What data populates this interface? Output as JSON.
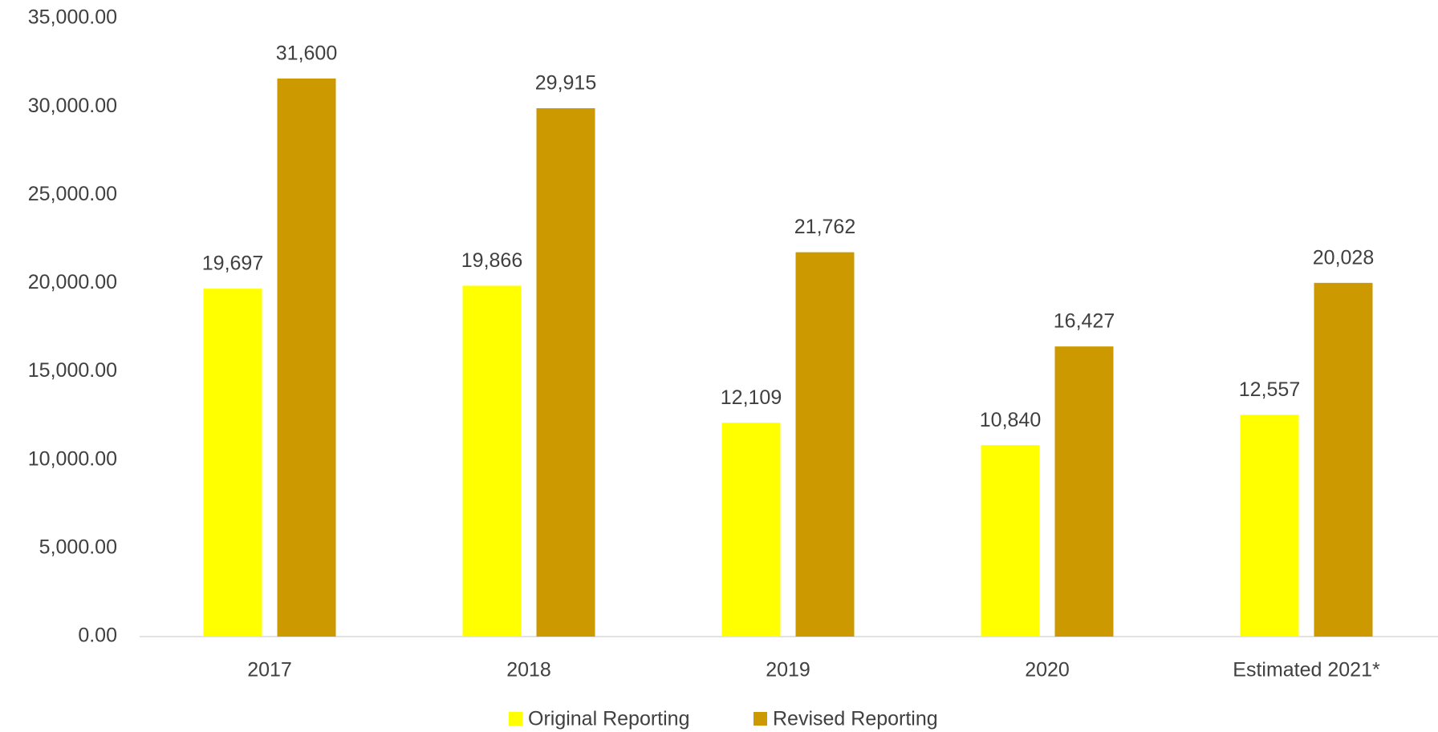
{
  "chart_data": {
    "type": "bar",
    "categories": [
      "2017",
      "2018",
      "2019",
      "2020",
      "Estimated 2021*"
    ],
    "series": [
      {
        "name": "Original Reporting",
        "color": "#ffff00",
        "values": [
          19697,
          19866,
          12109,
          10840,
          12557
        ],
        "value_labels": [
          "19,697",
          "19,866",
          "12,109",
          "10,840",
          "12,557"
        ]
      },
      {
        "name": "Revised Reporting",
        "color": "#cc9900",
        "values": [
          31600,
          29915,
          21762,
          16427,
          20028
        ],
        "value_labels": [
          "31,600",
          "29,915",
          "21,762",
          "16,427",
          "20,028"
        ]
      }
    ],
    "ylim": [
      0,
      35000
    ],
    "yticks": [
      {
        "value": 0,
        "label": "0.00"
      },
      {
        "value": 5000,
        "label": "5,000.00"
      },
      {
        "value": 10000,
        "label": "10,000.00"
      },
      {
        "value": 15000,
        "label": "15,000.00"
      },
      {
        "value": 20000,
        "label": "20,000.00"
      },
      {
        "value": 25000,
        "label": "25,000.00"
      },
      {
        "value": 30000,
        "label": "30,000.00"
      },
      {
        "value": 35000,
        "label": "35,000.00"
      }
    ],
    "grid": false,
    "legend": "bottom"
  }
}
